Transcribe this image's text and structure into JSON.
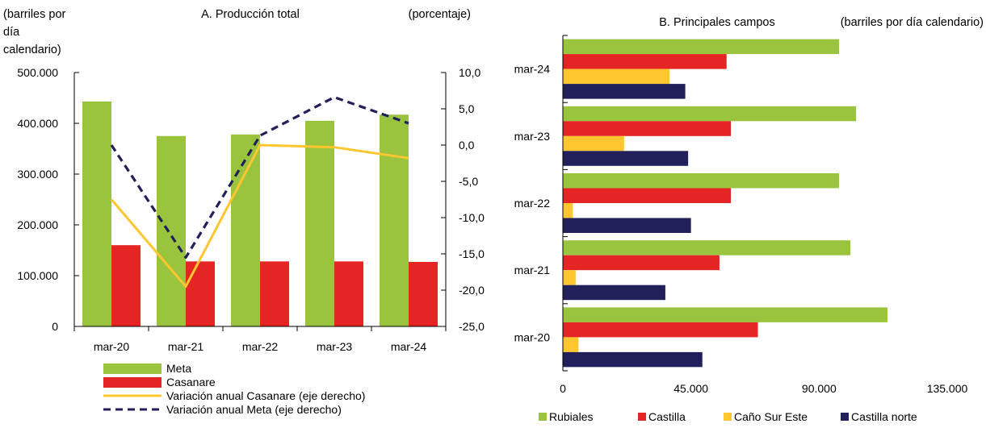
{
  "colors": {
    "green": "#9BC43E",
    "red": "#E52424",
    "yellow": "#FFC630",
    "navy": "#22205B",
    "axis": "#000000"
  },
  "panel_a": {
    "title": "A. Producción total",
    "left_unit_lines": [
      "(barriles por",
      "día",
      "calendario)"
    ],
    "right_unit": "(porcentaje)",
    "legend": [
      {
        "label": "Meta",
        "kind": "bar",
        "color": "#9BC43E"
      },
      {
        "label": "Casanare",
        "kind": "bar",
        "color": "#E52424"
      },
      {
        "label": "Variación anual Casanare (eje derecho)",
        "kind": "line",
        "color": "#FFC630"
      },
      {
        "label": "Variación anual Meta (eje derecho)",
        "kind": "dash",
        "color": "#22205B"
      }
    ]
  },
  "panel_b": {
    "title": "B. Principales campos",
    "unit": "(barriles por día calendario)",
    "legend": [
      {
        "label": "Rubiales",
        "color": "#9BC43E"
      },
      {
        "label": "Castilla",
        "color": "#E52424"
      },
      {
        "label": "Caño Sur Este",
        "color": "#FFC630"
      },
      {
        "label": "Castilla norte",
        "color": "#22205B"
      }
    ]
  },
  "chart_data": [
    {
      "type": "bar",
      "title": "A. Producción total",
      "categories": [
        "mar-20",
        "mar-21",
        "mar-22",
        "mar-23",
        "mar-24"
      ],
      "series": [
        {
          "name": "Meta",
          "type": "bar",
          "axis": "left",
          "values": [
            443000,
            375000,
            378000,
            405000,
            417000
          ]
        },
        {
          "name": "Casanare",
          "type": "bar",
          "axis": "left",
          "values": [
            160000,
            128000,
            128000,
            128000,
            127000
          ]
        },
        {
          "name": "Variación anual Casanare (eje derecho)",
          "type": "line",
          "axis": "right",
          "values": [
            -7.5,
            -19.5,
            0.0,
            -0.3,
            -1.8
          ]
        },
        {
          "name": "Variación anual Meta (eje derecho)",
          "type": "line",
          "axis": "right",
          "values": [
            0.0,
            -15.5,
            1.3,
            6.6,
            3.0
          ]
        }
      ],
      "y_left": {
        "label": "(barriles por día calendario)",
        "lim": [
          0,
          500000
        ],
        "ticks": [
          0,
          100000,
          200000,
          300000,
          400000,
          500000
        ],
        "tick_labels": [
          "0",
          "100.000",
          "200.000",
          "300.000",
          "400.000",
          "500.000"
        ]
      },
      "y_right": {
        "label": "(porcentaje)",
        "lim": [
          -25,
          10
        ],
        "ticks": [
          -25,
          -20,
          -15,
          -10,
          -5,
          0,
          5,
          10
        ],
        "tick_labels": [
          "-25,0",
          "-20,0",
          "-15,0",
          "-10,0",
          "-5,0",
          "0,0",
          "5,0",
          "10,0"
        ]
      },
      "grid": false,
      "legend_position": "bottom"
    },
    {
      "type": "bar",
      "orientation": "horizontal",
      "title": "B. Principales campos",
      "categories": [
        "mar-24",
        "mar-23",
        "mar-22",
        "mar-21",
        "mar-20"
      ],
      "series": [
        {
          "name": "Rubiales",
          "values": [
            97000,
            103000,
            97000,
            101000,
            114000
          ]
        },
        {
          "name": "Castilla",
          "values": [
            57500,
            59000,
            59000,
            55000,
            68500
          ]
        },
        {
          "name": "Caño Sur Este",
          "values": [
            37500,
            21500,
            3500,
            4500,
            5500
          ]
        },
        {
          "name": "Castilla norte",
          "values": [
            43000,
            44000,
            45000,
            36000,
            49000
          ]
        }
      ],
      "x": {
        "label": "(barriles por día calendario)",
        "lim": [
          0,
          135000
        ],
        "ticks": [
          0,
          45000,
          90000,
          135000
        ],
        "tick_labels": [
          "0",
          "45.000",
          "90.000",
          "135.000"
        ]
      },
      "grid": false,
      "legend_position": "bottom"
    }
  ]
}
